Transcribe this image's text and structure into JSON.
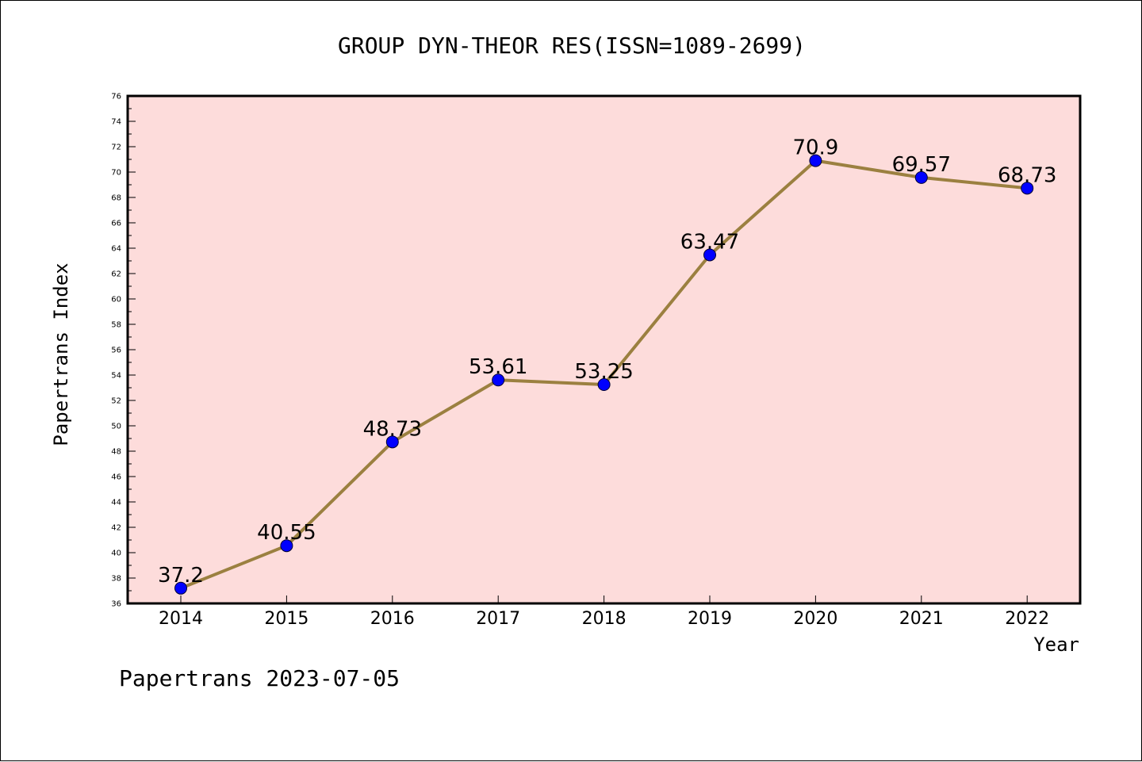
{
  "chart_data": {
    "type": "line",
    "title": "GROUP DYN-THEOR RES(ISSN=1089-2699)",
    "xlabel": "Year",
    "ylabel": "Papertrans Index",
    "categories": [
      "2014",
      "2015",
      "2016",
      "2017",
      "2018",
      "2019",
      "2020",
      "2021",
      "2022"
    ],
    "series": [
      {
        "values": [
          37.2,
          40.55,
          48.73,
          53.61,
          53.25,
          63.47,
          70.9,
          69.57,
          68.73
        ],
        "data_labels": [
          "37.2",
          "40.55",
          "48.73",
          "53.61",
          "53.25",
          "63.47",
          "70.9",
          "69.57",
          "68.73"
        ]
      }
    ],
    "ylim": [
      36,
      76
    ],
    "yticks": [
      36,
      38,
      40,
      42,
      44,
      46,
      48,
      50,
      52,
      54,
      56,
      58,
      60,
      62,
      64,
      66,
      68,
      70,
      72,
      74,
      76
    ],
    "grid": false,
    "colors": {
      "plot_background": "#fddcdb",
      "line": "#9b8040",
      "marker": "#0000ff"
    }
  },
  "footer": {
    "text": "Papertrans 2023-07-05"
  }
}
